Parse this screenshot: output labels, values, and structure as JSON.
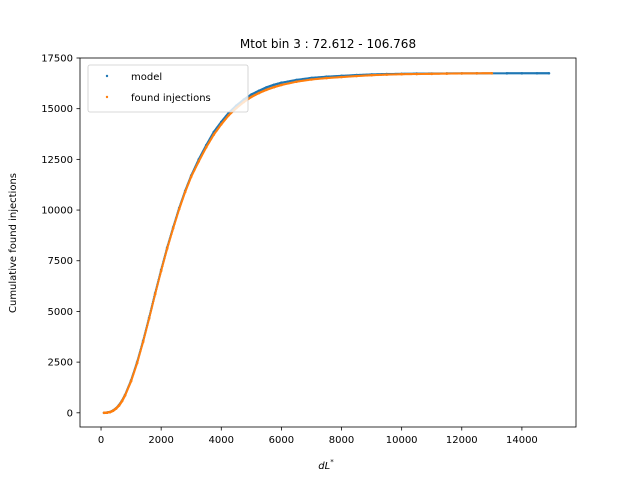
{
  "chart_data": {
    "type": "scatter",
    "title": "Mtot bin 3 : 72.612 - 106.768",
    "xlabel_main": "dL",
    "xlabel_sup": "*",
    "ylabel": "Cumulative found injections",
    "xlim": [
      -700,
      15800
    ],
    "ylim": [
      -700,
      17500
    ],
    "xticks": [
      0,
      2000,
      4000,
      6000,
      8000,
      10000,
      12000,
      14000
    ],
    "yticks": [
      0,
      2500,
      5000,
      7500,
      10000,
      12500,
      15000,
      17500
    ],
    "legend_position": "upper-left",
    "series": [
      {
        "name": "model",
        "color": "#1f77b4",
        "x": [
          100,
          200,
          300,
          400,
          500,
          600,
          700,
          800,
          1000,
          1200,
          1400,
          1600,
          1800,
          2000,
          2200,
          2400,
          2600,
          2800,
          3000,
          3250,
          3500,
          3750,
          4000,
          4250,
          4500,
          4750,
          5000,
          5250,
          5500,
          5750,
          6000,
          6500,
          7000,
          7500,
          8000,
          8500,
          9000,
          9500,
          10000,
          10500,
          11000,
          11500,
          12000,
          12500,
          13000,
          13500,
          14000,
          14500,
          14900
        ],
        "y": [
          0,
          10,
          40,
          110,
          220,
          380,
          600,
          880,
          1600,
          2500,
          3550,
          4700,
          5900,
          7050,
          8150,
          9150,
          10100,
          10950,
          11700,
          12500,
          13200,
          13850,
          14350,
          14800,
          15150,
          15450,
          15700,
          15880,
          16050,
          16180,
          16280,
          16420,
          16520,
          16580,
          16620,
          16660,
          16690,
          16710,
          16720,
          16730,
          16735,
          16740,
          16742,
          16744,
          16745,
          16746,
          16747,
          16748,
          16748
        ]
      },
      {
        "name": "found injections",
        "color": "#ff7f0e",
        "x": [
          100,
          200,
          300,
          400,
          500,
          600,
          700,
          800,
          1000,
          1200,
          1400,
          1600,
          1800,
          2000,
          2200,
          2400,
          2600,
          2800,
          3000,
          3250,
          3500,
          3750,
          4000,
          4250,
          4500,
          4750,
          5000,
          5250,
          5500,
          5750,
          6000,
          6500,
          7000,
          7500,
          8000,
          8500,
          9000,
          9500,
          10000,
          10500,
          11000,
          11500,
          12000,
          12500,
          13000
        ],
        "y": [
          0,
          8,
          35,
          100,
          210,
          360,
          580,
          860,
          1560,
          2450,
          3500,
          4650,
          5850,
          7000,
          8100,
          9100,
          10050,
          10900,
          11650,
          12400,
          13100,
          13720,
          14230,
          14680,
          15030,
          15330,
          15580,
          15770,
          15930,
          16060,
          16170,
          16330,
          16440,
          16510,
          16560,
          16610,
          16650,
          16680,
          16700,
          16710,
          16720,
          16730,
          16740,
          16745,
          16748
        ]
      }
    ]
  }
}
